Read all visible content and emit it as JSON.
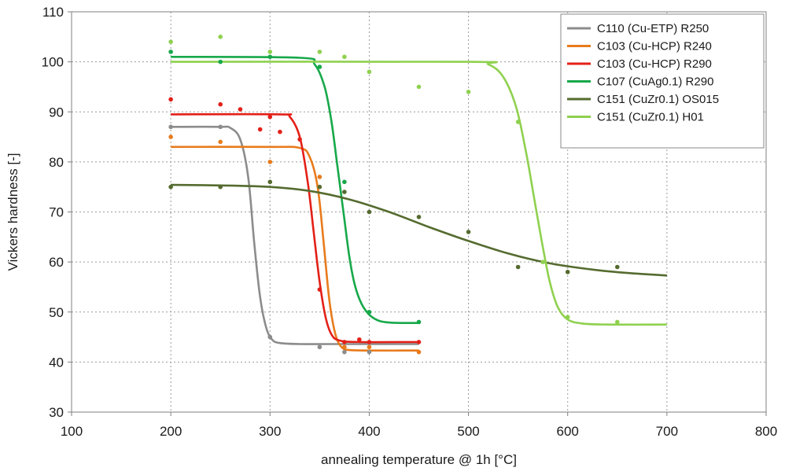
{
  "chart_data": {
    "type": "line",
    "xlabel": "annealing temperature @ 1h [°C]",
    "ylabel": "Vickers hardness [-]",
    "xlim": [
      100,
      800
    ],
    "ylim": [
      30,
      110
    ],
    "xticks": [
      100,
      200,
      300,
      400,
      500,
      600,
      700,
      800
    ],
    "yticks": [
      30,
      40,
      50,
      60,
      70,
      80,
      90,
      100,
      110
    ],
    "grid": true,
    "legend_position": "top-right",
    "series": [
      {
        "name": "C110 (Cu-ETP) R250",
        "color": "#8c8c8c",
        "points": [
          [
            200,
            87
          ],
          [
            250,
            87
          ],
          [
            300,
            45
          ],
          [
            350,
            43
          ],
          [
            375,
            42
          ],
          [
            400,
            42
          ]
        ],
        "fit": {
          "x": [
            200,
            250,
            260,
            270,
            278,
            284,
            290,
            296,
            302,
            310,
            330,
            360,
            400,
            450
          ],
          "y": [
            87,
            87,
            86.8,
            84.5,
            77,
            64,
            53,
            47,
            44.5,
            43.8,
            43.6,
            43.6,
            43.6,
            43.6
          ]
        }
      },
      {
        "name": "C103 (Cu-HCP) R240",
        "color": "#e87b1c",
        "points": [
          [
            200,
            85
          ],
          [
            250,
            84
          ],
          [
            300,
            80
          ],
          [
            350,
            77
          ],
          [
            375,
            43
          ],
          [
            400,
            43
          ],
          [
            450,
            42
          ]
        ],
        "fit": {
          "x": [
            200,
            300,
            330,
            340,
            348,
            354,
            360,
            366,
            372,
            380,
            400,
            450
          ],
          "y": [
            83,
            83,
            82.8,
            81,
            75,
            64,
            52,
            45.5,
            43,
            42.4,
            42.3,
            42.3
          ]
        }
      },
      {
        "name": "C103 (Cu-HCP) R290",
        "color": "#e32018",
        "points": [
          [
            200,
            92.5
          ],
          [
            250,
            91.5
          ],
          [
            270,
            90.5
          ],
          [
            290,
            86.5
          ],
          [
            300,
            89
          ],
          [
            310,
            86
          ],
          [
            330,
            84.5
          ],
          [
            350,
            54.5
          ],
          [
            375,
            44
          ],
          [
            390,
            44.5
          ],
          [
            400,
            44
          ],
          [
            450,
            44
          ]
        ],
        "fit": {
          "x": [
            200,
            310,
            320,
            330,
            338,
            344,
            350,
            356,
            362,
            370,
            390,
            450
          ],
          "y": [
            89.5,
            89.5,
            89,
            85,
            76,
            66,
            56,
            49,
            45.5,
            44.3,
            44,
            44
          ]
        }
      },
      {
        "name": "C107 (CuAg0.1) R290",
        "color": "#17a84a",
        "points": [
          [
            200,
            102
          ],
          [
            250,
            100
          ],
          [
            300,
            101
          ],
          [
            350,
            99
          ],
          [
            375,
            76
          ],
          [
            400,
            50
          ],
          [
            450,
            48
          ]
        ],
        "fit": {
          "x": [
            200,
            330,
            345,
            355,
            362,
            368,
            374,
            380,
            386,
            394,
            405,
            420,
            450
          ],
          "y": [
            101,
            100.8,
            99.5,
            95,
            88,
            79,
            70,
            61,
            55,
            51,
            48.7,
            47.9,
            47.8
          ]
        }
      },
      {
        "name": "C151 (CuZr0.1) OS015",
        "color": "#556b2f",
        "points": [
          [
            200,
            75
          ],
          [
            250,
            75
          ],
          [
            300,
            76
          ],
          [
            350,
            75
          ],
          [
            375,
            74
          ],
          [
            400,
            70
          ],
          [
            450,
            69
          ],
          [
            500,
            66
          ],
          [
            550,
            59
          ],
          [
            600,
            58
          ],
          [
            650,
            59
          ]
        ],
        "fit": {
          "x": [
            200,
            250,
            300,
            340,
            380,
            420,
            460,
            500,
            540,
            580,
            620,
            660,
            700
          ],
          "y": [
            75.4,
            75.3,
            75,
            74.2,
            72.5,
            70,
            67,
            64.2,
            61.7,
            59.8,
            58.6,
            57.8,
            57.3
          ]
        }
      },
      {
        "name": "C151 (CuZr0.1) H01",
        "color": "#8fd14f",
        "points": [
          [
            200,
            104
          ],
          [
            250,
            105
          ],
          [
            300,
            102
          ],
          [
            350,
            102
          ],
          [
            375,
            101
          ],
          [
            400,
            98
          ],
          [
            450,
            95
          ],
          [
            500,
            94
          ],
          [
            550,
            88
          ],
          [
            575,
            60
          ],
          [
            600,
            49
          ],
          [
            650,
            48
          ]
        ],
        "fit": {
          "x": [
            200,
            500,
            520,
            535,
            548,
            558,
            566,
            574,
            582,
            590,
            600,
            615,
            640,
            700
          ],
          "y": [
            100,
            100,
            99.5,
            97,
            91,
            82,
            73,
            64,
            56,
            51,
            48.5,
            47.7,
            47.5,
            47.5
          ]
        }
      }
    ]
  }
}
